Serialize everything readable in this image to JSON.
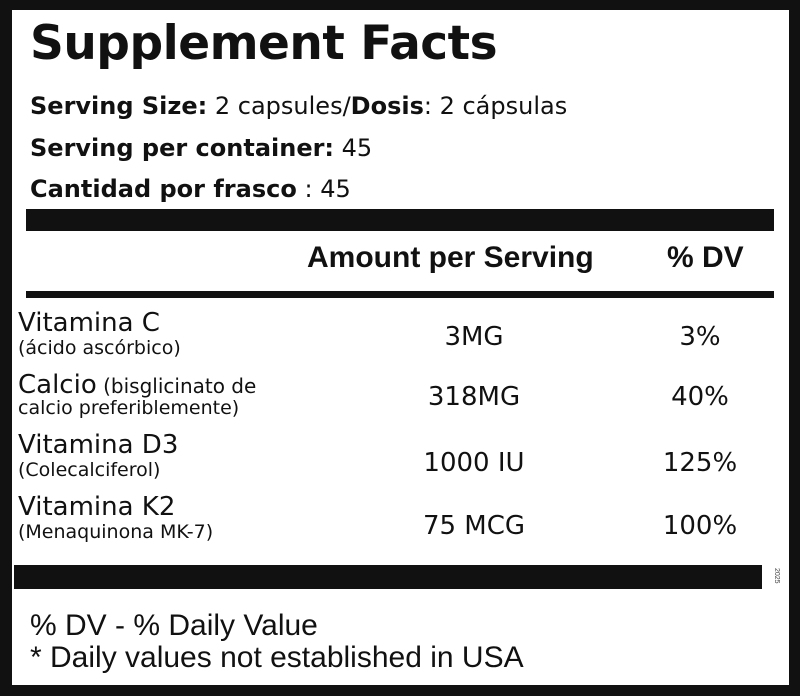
{
  "title": "Supplement Facts",
  "serving": {
    "size_label": "Serving Size:",
    "size_value": " 2 capsules/",
    "dosis_label": "Dosis",
    "dosis_value": ": 2 cápsulas",
    "per_container_label": "Serving per container:",
    "per_container_value": " 45",
    "cantidad_label": "Cantidad por frasco",
    "cantidad_value": " : 45"
  },
  "columns": {
    "amount": "Amount per Serving",
    "dv": "% DV"
  },
  "rows": [
    {
      "name": "Vitamina C",
      "sub": "(ácido ascórbico)",
      "amount": "3MG",
      "dv": "3%"
    },
    {
      "name": "Calcio",
      "name_extra": " (bisglicinato de",
      "sub": "calcio preferiblemente)",
      "amount": "318MG",
      "dv": "40%"
    },
    {
      "name": "Vitamina D3",
      "sub": "(Colecalciferol)",
      "amount": "1000 IU",
      "dv": "125%"
    },
    {
      "name": "Vitamina K2",
      "sub": "(Menaquinona MK-7)",
      "amount": "75 MCG",
      "dv": "100%"
    }
  ],
  "side_code": "2025",
  "footer": {
    "line1": "% DV - % Daily Value",
    "line2": "* Daily values not established in USA"
  },
  "colors": {
    "ink": "#111111",
    "background": "#ffffff"
  }
}
